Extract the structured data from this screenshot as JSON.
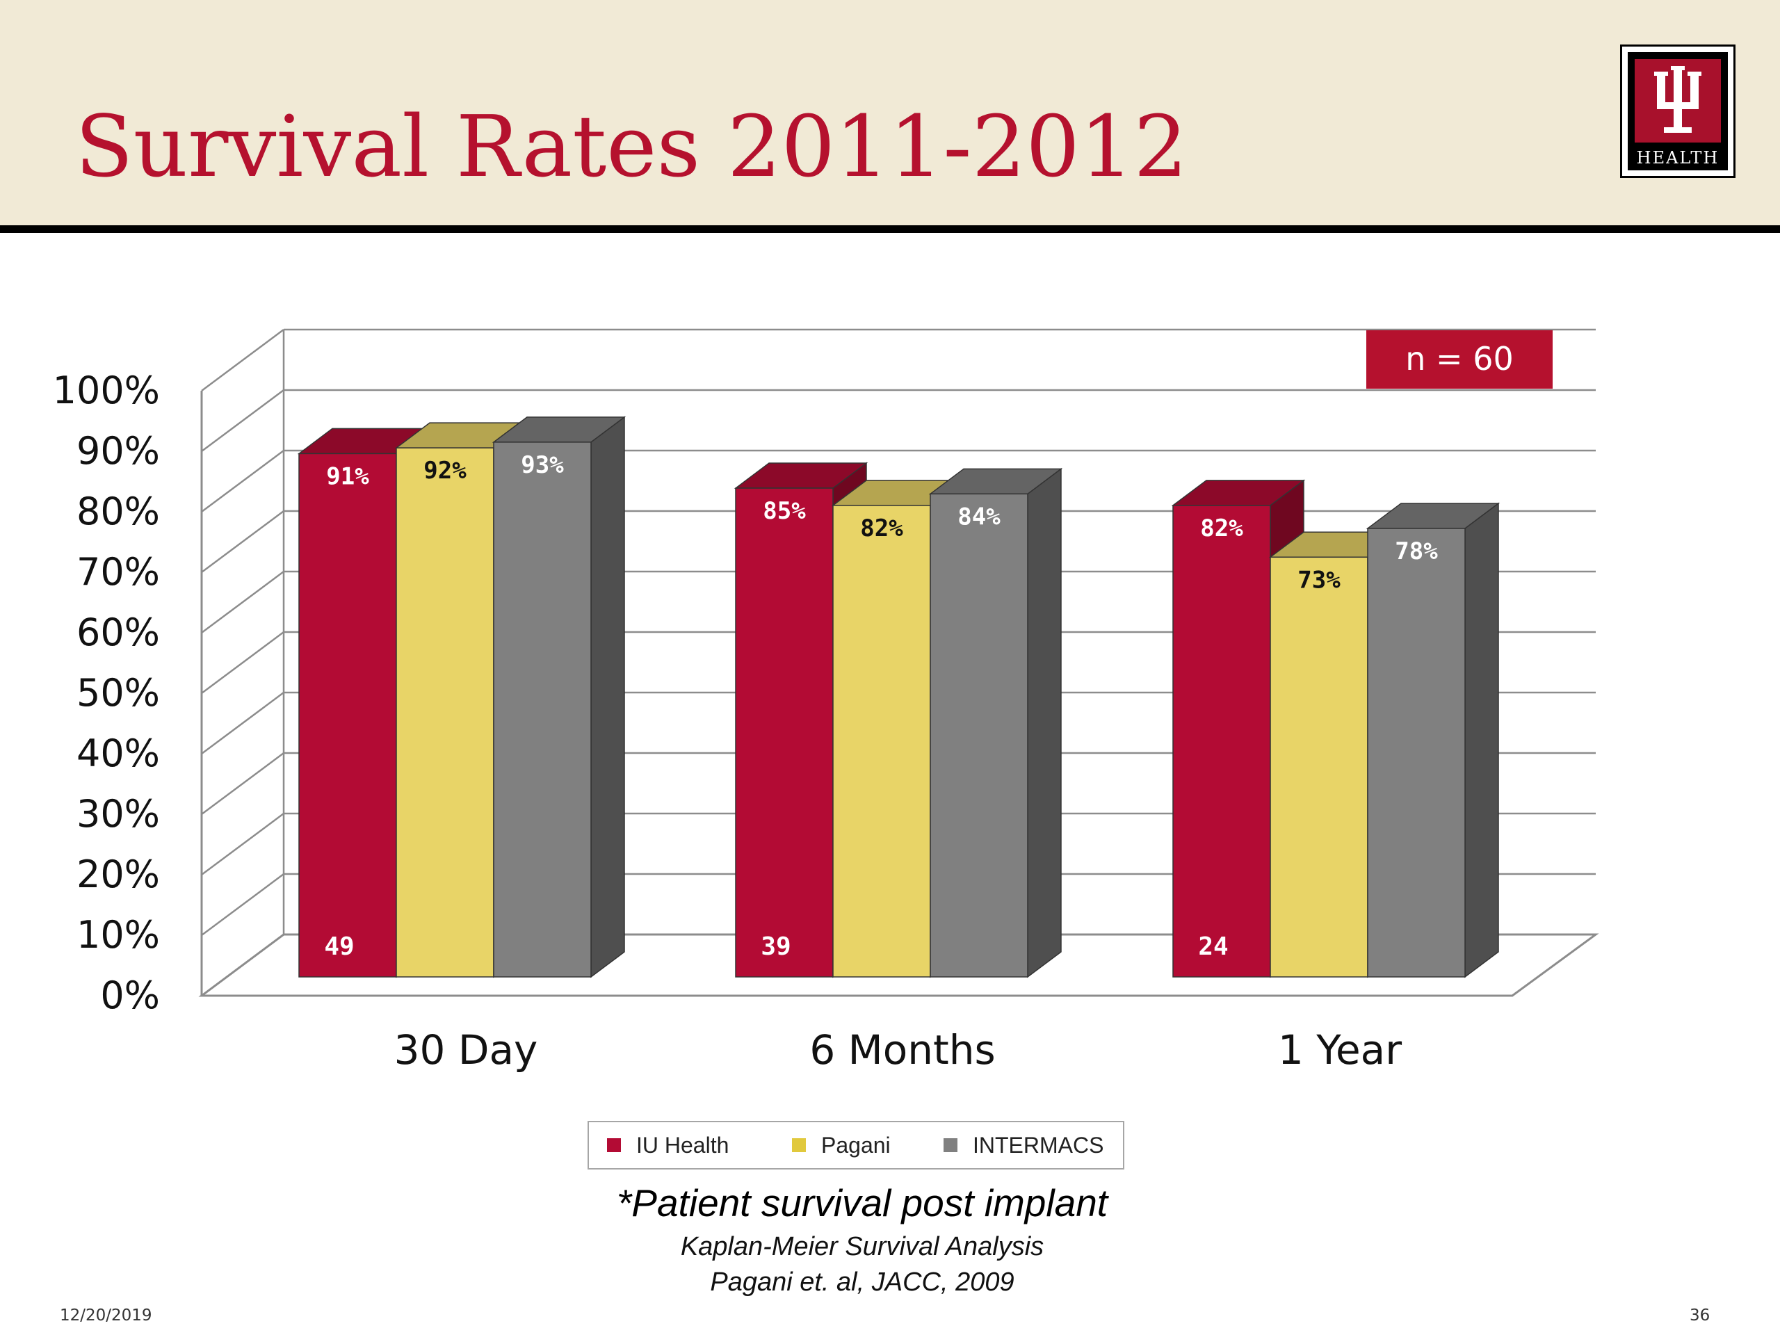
{
  "slide": {
    "title": "Survival Rates 2011-2012",
    "logo_text": "HEALTH",
    "date": "12/20/2019",
    "page_number": "36",
    "caption": "*Patient survival post implant",
    "subcaption_1": "Kaplan-Meier Survival Analysis",
    "subcaption_2": "Pagani et. al, JACC, 2009"
  },
  "colors": {
    "brand": "#b5112e",
    "header_bg": "#f1ead6"
  },
  "chart_data": {
    "type": "bar",
    "style": "3d-clustered-column",
    "categories": [
      "30 Day",
      "6 Months",
      "1 Year"
    ],
    "series": [
      {
        "name": "IU Health",
        "values": [
          91,
          85,
          82
        ],
        "value_labels": [
          "91%",
          "85%",
          "82%"
        ],
        "base_labels": [
          "49",
          "39",
          "24"
        ],
        "color": "#b30b34"
      },
      {
        "name": "Pagani",
        "values": [
          92,
          82,
          73
        ],
        "value_labels": [
          "92%",
          "82%",
          "73%"
        ],
        "base_labels": [
          "",
          "",
          ""
        ],
        "color": "#e8d467"
      },
      {
        "name": "INTERMACS",
        "values": [
          93,
          84,
          78
        ],
        "value_labels": [
          "93%",
          "84%",
          "78%"
        ],
        "base_labels": [
          "",
          "",
          ""
        ],
        "color": "#808080"
      }
    ],
    "y_ticks": [
      "0%",
      "10%",
      "20%",
      "30%",
      "40%",
      "50%",
      "60%",
      "70%",
      "80%",
      "90%",
      "100%"
    ],
    "ylim": [
      0,
      100
    ],
    "grid": true,
    "legend_position": "bottom",
    "annotation": "n = 60"
  }
}
